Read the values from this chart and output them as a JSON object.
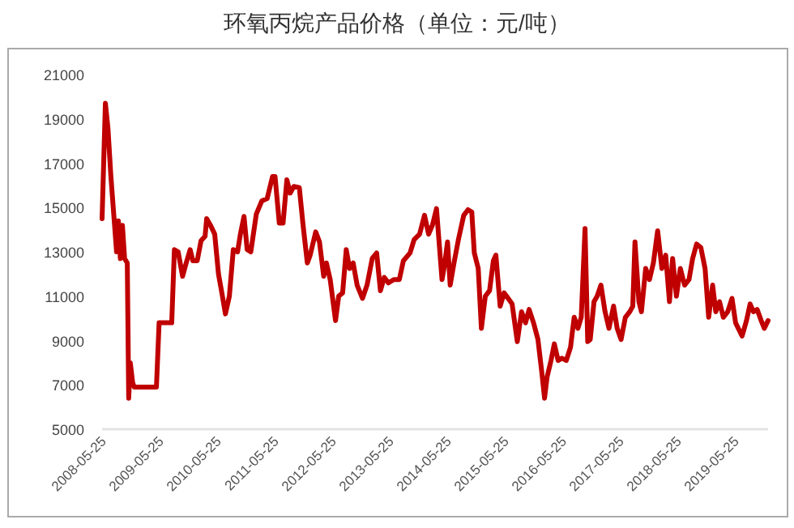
{
  "chart_data": {
    "type": "line",
    "title": "环氧丙烷产品价格（单位：元/吨）",
    "x": [
      "2008-05-25",
      "2008-06-15",
      "2008-07-01",
      "2008-07-20",
      "2008-08-07",
      "2008-08-25",
      "2008-09-05",
      "2008-09-18",
      "2008-10-01",
      "2008-10-15",
      "2008-11-01",
      "2008-11-10",
      "2008-11-20",
      "2008-12-05",
      "2008-12-15",
      "2009-05-05",
      "2009-05-22",
      "2009-08-10",
      "2009-08-27",
      "2009-09-20",
      "2009-10-18",
      "2009-11-10",
      "2009-12-05",
      "2009-12-22",
      "2010-01-19",
      "2010-02-12",
      "2010-03-10",
      "2010-03-20",
      "2010-04-13",
      "2010-05-10",
      "2010-06-03",
      "2010-06-28",
      "2010-07-17",
      "2010-08-11",
      "2010-09-05",
      "2010-10-02",
      "2010-10-20",
      "2010-11-12",
      "2010-12-02",
      "2010-12-25",
      "2011-01-29",
      "2011-03-05",
      "2011-04-08",
      "2011-05-12",
      "2011-05-28",
      "2011-06-24",
      "2011-07-18",
      "2011-08-11",
      "2011-09-01",
      "2011-09-24",
      "2011-10-29",
      "2011-11-22",
      "2011-12-19",
      "2012-01-06",
      "2012-02-10",
      "2012-03-05",
      "2012-04-01",
      "2012-04-18",
      "2012-05-12",
      "2012-06-15",
      "2012-07-05",
      "2012-07-30",
      "2012-08-22",
      "2012-09-12",
      "2012-10-05",
      "2012-10-30",
      "2012-12-03",
      "2013-01-01",
      "2013-02-03",
      "2013-03-03",
      "2013-03-27",
      "2013-04-20",
      "2013-05-17",
      "2013-06-20",
      "2013-07-25",
      "2013-08-20",
      "2013-10-01",
      "2013-10-27",
      "2013-12-01",
      "2014-01-01",
      "2014-01-27",
      "2014-02-20",
      "2014-03-18",
      "2014-04-22",
      "2014-05-10",
      "2014-05-27",
      "2014-06-13",
      "2014-07-07",
      "2014-08-04",
      "2014-09-07",
      "2014-10-04",
      "2014-10-28",
      "2014-11-13",
      "2014-12-08",
      "2014-12-28",
      "2015-01-22",
      "2015-02-18",
      "2015-03-14",
      "2015-03-30",
      "2015-04-26",
      "2015-05-21",
      "2015-06-06",
      "2015-07-11",
      "2015-08-13",
      "2015-09-09",
      "2015-10-04",
      "2015-10-27",
      "2015-11-24",
      "2015-12-22",
      "2016-01-15",
      "2016-02-02",
      "2016-02-18",
      "2016-03-14",
      "2016-04-04",
      "2016-04-28",
      "2016-05-22",
      "2016-06-19",
      "2016-07-16",
      "2016-08-08",
      "2016-09-01",
      "2016-09-22",
      "2016-10-16",
      "2016-11-02",
      "2016-11-18",
      "2016-12-12",
      "2017-01-01",
      "2017-01-25",
      "2017-02-20",
      "2017-03-17",
      "2017-04-15",
      "2017-05-08",
      "2017-06-02",
      "2017-06-29",
      "2017-07-27",
      "2017-08-15",
      "2017-08-29",
      "2017-09-23",
      "2017-10-09",
      "2017-11-05",
      "2017-11-29",
      "2017-12-24",
      "2018-01-20",
      "2018-02-16",
      "2018-03-12",
      "2018-04-05",
      "2018-04-25",
      "2018-05-19",
      "2018-06-13",
      "2018-07-10",
      "2018-08-07",
      "2018-08-30",
      "2018-09-24",
      "2018-10-21",
      "2018-11-17",
      "2018-12-10",
      "2019-01-04",
      "2019-01-24",
      "2019-02-17",
      "2019-03-13",
      "2019-04-10",
      "2019-05-07",
      "2019-05-30",
      "2019-06-16",
      "2019-07-10",
      "2019-08-07",
      "2019-08-30",
      "2019-09-20",
      "2019-10-14",
      "2019-11-08",
      "2019-11-28",
      "2019-12-22"
    ],
    "series": [
      {
        "color": "#c00000",
        "values": [
          14500,
          19700,
          18600,
          16400,
          14700,
          13000,
          14400,
          12700,
          14200,
          12700,
          12500,
          6400,
          8000,
          7100,
          6900,
          6900,
          9800,
          9800,
          13100,
          13000,
          11900,
          12500,
          13100,
          12600,
          12600,
          13500,
          13700,
          14500,
          14200,
          13800,
          12000,
          11000,
          10200,
          11000,
          13100,
          13000,
          13800,
          14600,
          13100,
          13000,
          14700,
          15300,
          15400,
          16400,
          16400,
          14300,
          14300,
          16250,
          15650,
          15950,
          15900,
          14200,
          12500,
          12850,
          13900,
          13450,
          11900,
          12500,
          11750,
          9900,
          11000,
          11150,
          13100,
          12250,
          12500,
          11500,
          10900,
          11500,
          12700,
          12950,
          11250,
          11850,
          11600,
          11750,
          11750,
          12600,
          12950,
          13550,
          13800,
          14650,
          13800,
          14200,
          14950,
          11750,
          12500,
          13450,
          11500,
          12500,
          13550,
          14650,
          14900,
          14800,
          12950,
          12250,
          9550,
          11000,
          11250,
          12600,
          12850,
          10550,
          11150,
          11000,
          10650,
          8950,
          10300,
          9800,
          10400,
          9800,
          9050,
          7600,
          6400,
          7350,
          8100,
          8850,
          8100,
          8200,
          8100,
          8700,
          10050,
          9550,
          10050,
          14050,
          8950,
          9050,
          10750,
          11000,
          11500,
          10300,
          9550,
          10550,
          9550,
          9050,
          10050,
          10300,
          10550,
          13450,
          10750,
          10300,
          12250,
          11750,
          12500,
          13950,
          12250,
          12850,
          10750,
          12700,
          11000,
          12250,
          11500,
          11750,
          12700,
          13350,
          13200,
          12250,
          10050,
          11500,
          10300,
          10750,
          10050,
          10300,
          10900,
          9800,
          9550,
          9200,
          9900,
          10650,
          10300,
          10400,
          9900,
          9550,
          9900
        ]
      }
    ],
    "xlim": [
      "2008-05-25",
      "2019-12-22"
    ],
    "xticks": [
      {
        "value": "2008-05-25",
        "label": "2008-05-25"
      },
      {
        "value": "2009-05-25",
        "label": "2009-05-25"
      },
      {
        "value": "2010-05-25",
        "label": "2010-05-25"
      },
      {
        "value": "2011-05-25",
        "label": "2011-05-25"
      },
      {
        "value": "2012-05-25",
        "label": "2012-05-25"
      },
      {
        "value": "2013-05-25",
        "label": "2013-05-25"
      },
      {
        "value": "2014-05-25",
        "label": "2014-05-25"
      },
      {
        "value": "2015-05-25",
        "label": "2015-05-25"
      },
      {
        "value": "2016-05-25",
        "label": "2016-05-25"
      },
      {
        "value": "2017-05-25",
        "label": "2017-05-25"
      },
      {
        "value": "2018-05-25",
        "label": "2018-05-25"
      },
      {
        "value": "2019-05-25",
        "label": "2019-05-25"
      }
    ],
    "ylim": [
      5000,
      21000
    ],
    "yticks": [
      5000,
      7000,
      9000,
      11000,
      13000,
      15000,
      17000,
      19000,
      21000
    ]
  }
}
